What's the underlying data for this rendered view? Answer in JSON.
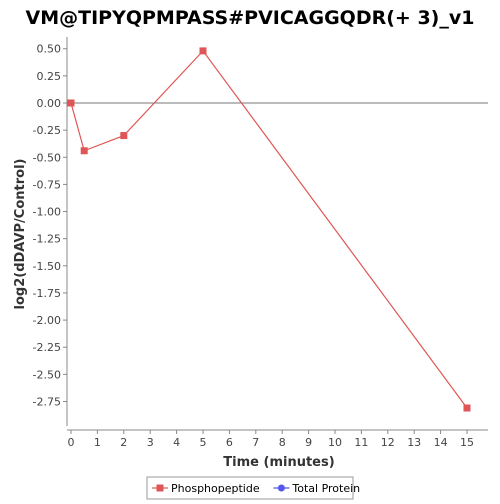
{
  "chart_data": {
    "type": "line",
    "title": "VM@TIPYQPMPASS#PVICAGGQDR(+ 3)_v1",
    "xlabel": "Time (minutes)",
    "ylabel": "log2(dDAVP/Control)",
    "xlim": [
      0,
      16
    ],
    "ylim": [
      -3.0,
      0.6
    ],
    "x_ticks": [
      0,
      1,
      2,
      3,
      4,
      5,
      6,
      7,
      8,
      9,
      10,
      11,
      12,
      13,
      14,
      15
    ],
    "x_tick_labels": [
      "0",
      "1",
      "2",
      "3",
      "4",
      "5",
      "6",
      "7",
      "8",
      "9",
      "10",
      "11",
      "12",
      "13",
      "14",
      "15"
    ],
    "y_ticks": [
      0.5,
      0.25,
      0.0,
      -0.25,
      -0.5,
      -0.75,
      -1.0,
      -1.25,
      -1.5,
      -1.75,
      -2.0,
      -2.25,
      -2.5,
      -2.75
    ],
    "y_tick_labels": [
      "0.50",
      "0.25",
      "0.00",
      "-0.25",
      "-0.50",
      "-0.75",
      "-1.00",
      "-1.25",
      "-1.50",
      "-1.75",
      "-2.00",
      "-2.25",
      "-2.50",
      "-2.75"
    ],
    "zero_line": 0,
    "grid": false,
    "legend_position": "bottom",
    "series": [
      {
        "name": "Phosphopeptide",
        "color": "#e05555",
        "marker": "square",
        "x": [
          0,
          0.5,
          2,
          5,
          15
        ],
        "y": [
          0.0,
          -0.44,
          -0.3,
          0.48,
          -2.81
        ]
      },
      {
        "name": "Total Protein",
        "color": "#5555ee",
        "marker": "circle",
        "x": [],
        "y": []
      }
    ]
  }
}
